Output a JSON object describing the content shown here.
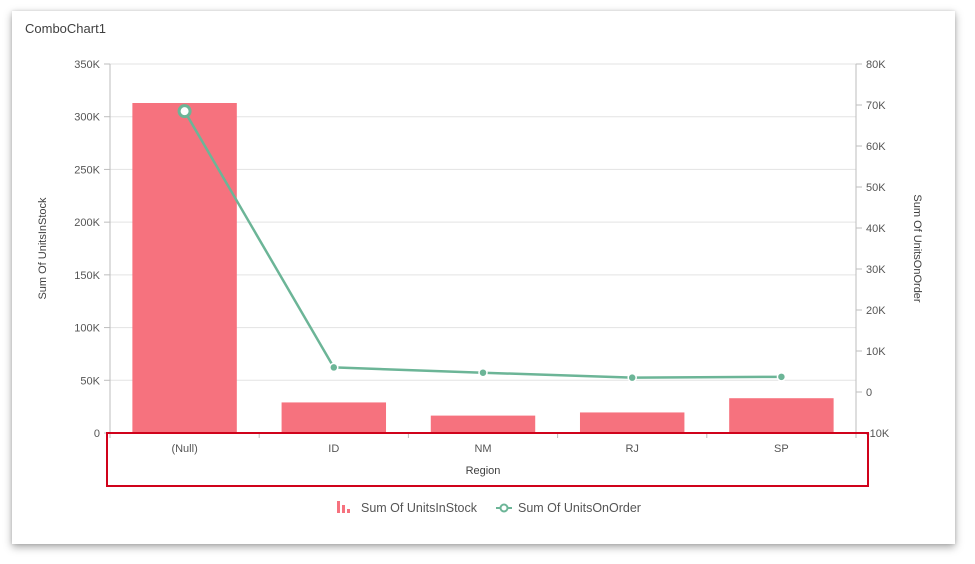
{
  "widget": {
    "title": "ComboChart1"
  },
  "colors": {
    "bar": "#f6727e",
    "line": "#6cb597",
    "highlight": "#d0021b",
    "grid": "#e3e3e3",
    "axis": "#bdbdbd"
  },
  "chart_data": {
    "type": "bar",
    "title": "",
    "categories": [
      "(Null)",
      "ID",
      "NM",
      "RJ",
      "SP"
    ],
    "xlabel": "Region",
    "ylabel": "Sum Of UnitsInStock",
    "y2label": "Sum Of UnitsOnOrder",
    "ylim": [
      0,
      350000
    ],
    "y2lim": [
      -10000,
      80000
    ],
    "y_ticks": [
      0,
      50000,
      100000,
      150000,
      200000,
      250000,
      300000,
      350000
    ],
    "y_tick_labels": [
      "0",
      "50K",
      "100K",
      "150K",
      "200K",
      "250K",
      "300K",
      "350K"
    ],
    "y2_ticks": [
      -10000,
      0,
      10000,
      20000,
      30000,
      40000,
      50000,
      60000,
      70000,
      80000
    ],
    "y2_tick_labels": [
      "-10K",
      "0",
      "10K",
      "20K",
      "30K",
      "40K",
      "50K",
      "60K",
      "70K",
      "80K"
    ],
    "grid": true,
    "legend_position": "bottom-center",
    "series": [
      {
        "name": "Sum Of UnitsInStock",
        "type": "bar",
        "axis": "left",
        "values": [
          313000,
          29000,
          16500,
          19500,
          33000
        ]
      },
      {
        "name": "Sum Of UnitsOnOrder",
        "type": "line",
        "axis": "right",
        "values": [
          68500,
          6000,
          4700,
          3500,
          3700
        ]
      }
    ],
    "highlighted_point": "(Null)",
    "annotation": "Region axis area outlined in red"
  }
}
